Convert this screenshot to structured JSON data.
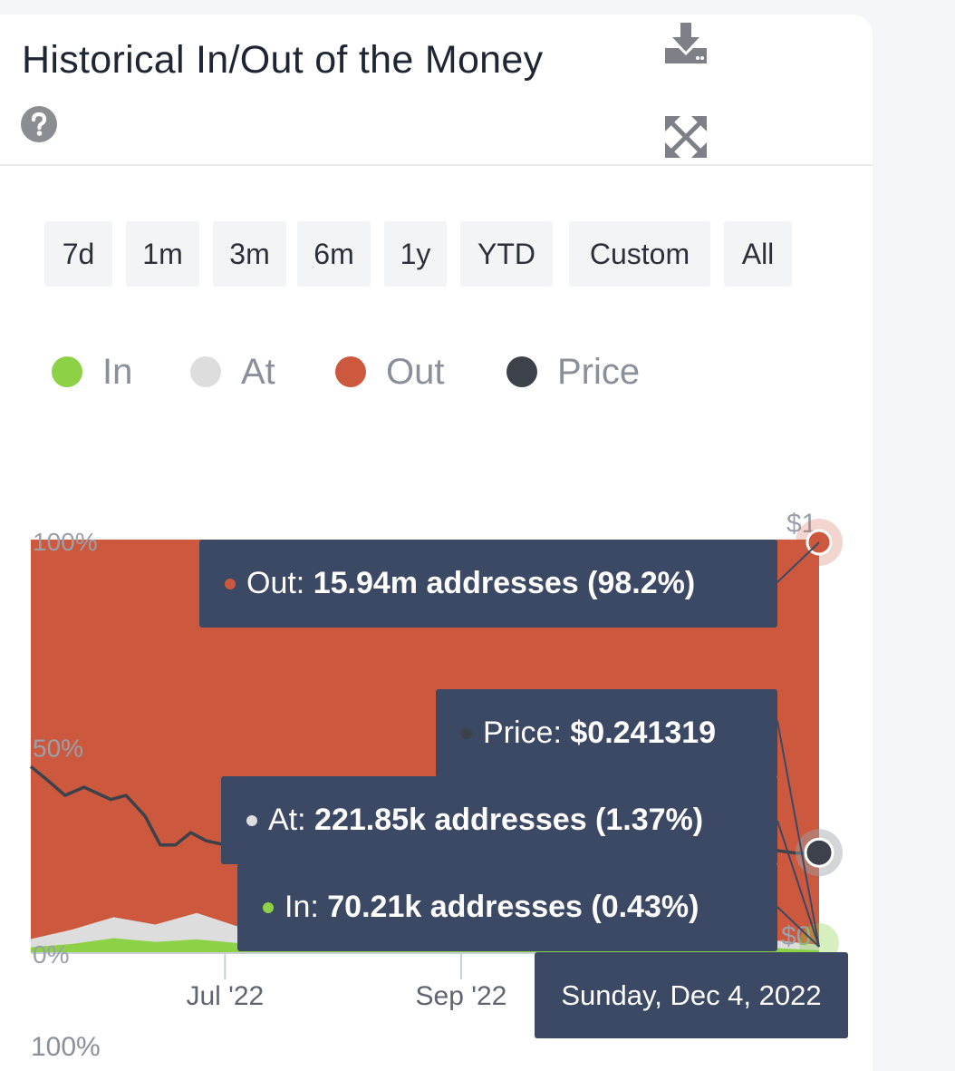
{
  "widget": {
    "title": "Historical In/Out of the Money",
    "icons": {
      "help": "question-circle-icon",
      "download": "download-icon",
      "fullscreen": "expand-arrows-icon"
    }
  },
  "range_buttons": [
    "7d",
    "1m",
    "3m",
    "6m",
    "1y",
    "YTD",
    "Custom",
    "All"
  ],
  "legend": [
    {
      "label": "In",
      "color": "#8dd146"
    },
    {
      "label": "At",
      "color": "#dddddd"
    },
    {
      "label": "Out",
      "color": "#cc583e"
    },
    {
      "label": "Price",
      "color": "#3d424a"
    }
  ],
  "colors": {
    "in": "#8dd146",
    "at": "#dddddd",
    "out": "#cc583e",
    "price": "#3d424a",
    "tooltip_bg": "#3c4965"
  },
  "chart_data": {
    "type": "area",
    "stacked_percent": true,
    "y_ticks": [
      "0%",
      "50%",
      "100%"
    ],
    "y_right_ticks": [
      "$1",
      "$0"
    ],
    "x_ticks": [
      "Jul '22",
      "Sep '22"
    ],
    "x_range": [
      "2022-05-11",
      "2022-12-04"
    ],
    "x_tick_dates": [
      "2022-07-01",
      "2022-09-01"
    ],
    "series": [
      {
        "name": "In",
        "values_pct": [
          1.2,
          2.0,
          3.4,
          2.5,
          3.1,
          2.2,
          1.8,
          2.4,
          1.6,
          1.1,
          2.3,
          1.0,
          0.9,
          1.4,
          1.2,
          2.0,
          1.5,
          1.2,
          1.0,
          0.43
        ]
      },
      {
        "name": "At",
        "values_pct": [
          2.0,
          3.5,
          5.1,
          4.2,
          6.4,
          4.0,
          3.2,
          4.4,
          2.5,
          2.2,
          3.6,
          1.8,
          1.5,
          2.6,
          2.0,
          3.1,
          2.4,
          2.2,
          1.8,
          1.37
        ]
      },
      {
        "name": "Out",
        "values_pct": [
          96.8,
          94.5,
          91.5,
          93.3,
          90.5,
          93.8,
          95.0,
          93.2,
          95.9,
          96.7,
          94.1,
          97.2,
          97.6,
          96.0,
          96.8,
          94.9,
          96.1,
          96.6,
          97.2,
          98.2
        ]
      }
    ],
    "price_series": {
      "name": "Price",
      "points": [
        [
          "2022-05-11",
          0.45
        ],
        [
          "2022-05-15",
          0.42
        ],
        [
          "2022-05-20",
          0.38
        ],
        [
          "2022-05-25",
          0.4
        ],
        [
          "2022-06-01",
          0.37
        ],
        [
          "2022-06-05",
          0.38
        ],
        [
          "2022-06-10",
          0.33
        ],
        [
          "2022-06-14",
          0.26
        ],
        [
          "2022-06-18",
          0.26
        ],
        [
          "2022-06-22",
          0.29
        ],
        [
          "2022-06-26",
          0.27
        ],
        [
          "2022-07-01",
          0.26
        ],
        [
          "2022-07-06",
          0.25
        ],
        [
          "2022-07-12",
          0.26
        ],
        [
          "2022-07-20",
          0.28
        ],
        [
          "2022-11-20",
          0.25
        ],
        [
          "2022-11-28",
          0.24
        ],
        [
          "2022-12-04",
          0.241319
        ]
      ]
    },
    "tooltip": {
      "date": "Sunday, Dec 4, 2022",
      "out": {
        "label": "Out:",
        "value": "15.94m addresses (98.2%)"
      },
      "price": {
        "label": "Price:",
        "value": "$0.241319"
      },
      "at": {
        "label": "At:",
        "value": "221.85k addresses (1.37%)"
      },
      "in": {
        "label": "In:",
        "value": "70.21k addresses (0.43%)"
      }
    }
  },
  "navigator": {
    "top_label": "100%"
  }
}
